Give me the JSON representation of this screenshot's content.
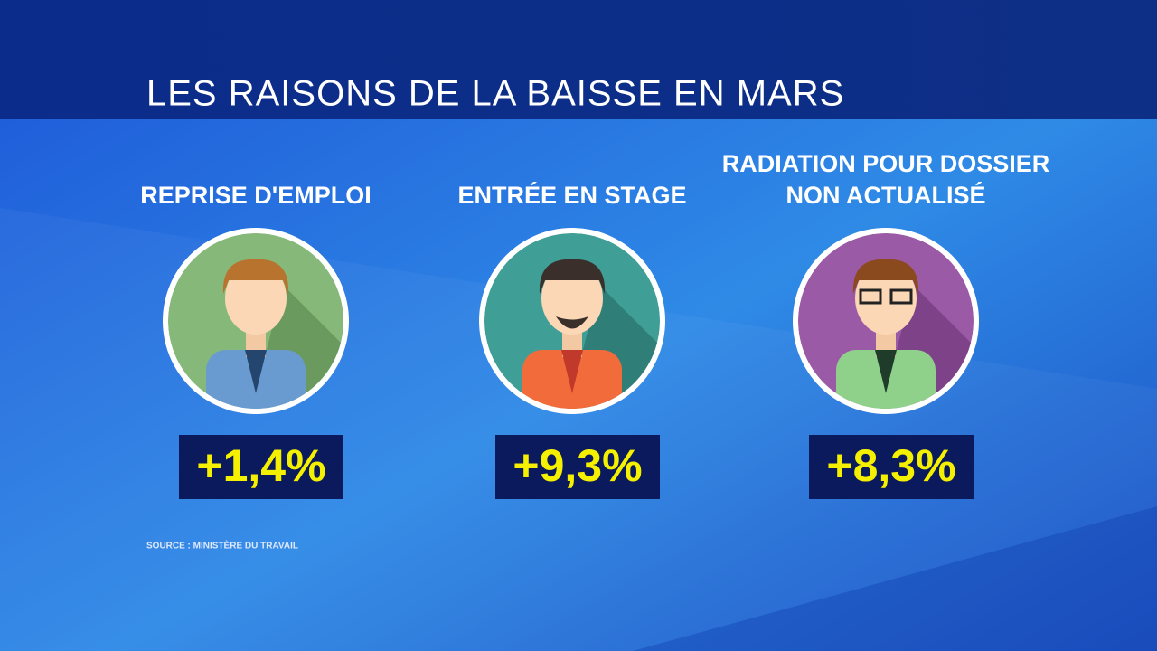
{
  "header": {
    "title": "LES RAISONS DE LA BAISSE EN MARS"
  },
  "items": [
    {
      "label": [
        "REPRISE D'EMPLOI"
      ],
      "value": "+1,4%"
    },
    {
      "label": [
        "ENTRÉE EN STAGE"
      ],
      "value": "+9,3%"
    },
    {
      "label": [
        "RADIATION POUR DOSSIER",
        "NON ACTUALISÉ"
      ],
      "value": "+8,3%"
    }
  ],
  "footer": {
    "source": "SOURCE : MINISTÈRE DU TRAVAIL"
  }
}
